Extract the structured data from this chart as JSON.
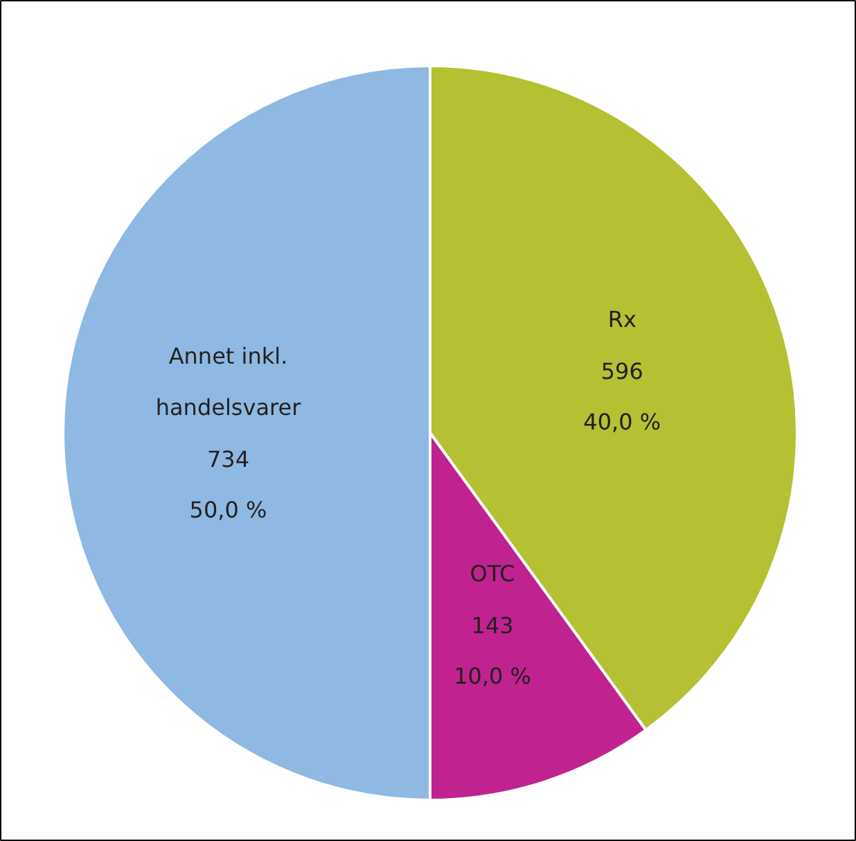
{
  "chart_data": {
    "type": "pie",
    "categories": [
      "Rx",
      "OTC",
      "Annet inkl. handelsvarer"
    ],
    "values": [
      40.0,
      10.0,
      50.0
    ],
    "colors": [
      "#b5c032",
      "#c0238f",
      "#8fb9e3"
    ],
    "value_labels": [
      "596\n40,0 %",
      "143\n10,0 %",
      "734\n50,0 %"
    ]
  }
}
